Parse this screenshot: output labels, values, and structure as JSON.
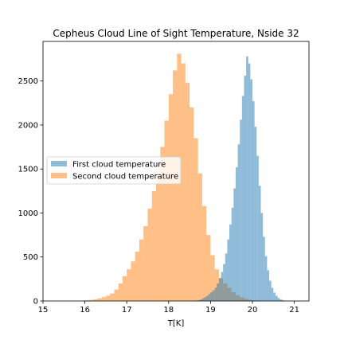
{
  "chart_data": {
    "type": "histogram",
    "title": "Cepheus Cloud Line of Sight Temperature, Nside 32",
    "xlabel": "T[K]",
    "ylabel": "",
    "xlim": [
      15.0,
      21.35
    ],
    "ylim": [
      0,
      2950
    ],
    "xticks": [
      "15",
      "16",
      "17",
      "18",
      "19",
      "20",
      "21"
    ],
    "yticks": [
      "0",
      "500",
      "1000",
      "1500",
      "2000",
      "2500"
    ],
    "grid": false,
    "legend_position": "center-left",
    "series": [
      {
        "name": "First cloud temperature",
        "color": "#1f77b4",
        "opacity": 0.5,
        "bin_width": 0.05,
        "bins": [
          [
            18.6,
            2
          ],
          [
            18.65,
            5
          ],
          [
            18.7,
            10
          ],
          [
            18.75,
            18
          ],
          [
            18.8,
            30
          ],
          [
            18.85,
            45
          ],
          [
            18.9,
            60
          ],
          [
            18.95,
            80
          ],
          [
            19.0,
            100
          ],
          [
            19.05,
            120
          ],
          [
            19.1,
            150
          ],
          [
            19.15,
            200
          ],
          [
            19.2,
            260
          ],
          [
            19.25,
            330
          ],
          [
            19.3,
            420
          ],
          [
            19.35,
            540
          ],
          [
            19.4,
            700
          ],
          [
            19.45,
            870
          ],
          [
            19.5,
            1060
          ],
          [
            19.55,
            1280
          ],
          [
            19.6,
            1520
          ],
          [
            19.65,
            1780
          ],
          [
            19.7,
            2060
          ],
          [
            19.75,
            2330
          ],
          [
            19.8,
            2560
          ],
          [
            19.85,
            2780
          ],
          [
            19.9,
            2700
          ],
          [
            19.95,
            2520
          ],
          [
            20.0,
            2270
          ],
          [
            20.05,
            1980
          ],
          [
            20.1,
            1650
          ],
          [
            20.15,
            1310
          ],
          [
            20.2,
            1000
          ],
          [
            20.25,
            730
          ],
          [
            20.3,
            510
          ],
          [
            20.35,
            350
          ],
          [
            20.4,
            230
          ],
          [
            20.45,
            150
          ],
          [
            20.5,
            95
          ],
          [
            20.55,
            60
          ],
          [
            20.6,
            35
          ],
          [
            20.65,
            20
          ],
          [
            20.7,
            10
          ],
          [
            20.75,
            5
          ],
          [
            20.8,
            2
          ]
        ]
      },
      {
        "name": "Second cloud temperature",
        "color": "#ff7f0e",
        "opacity": 0.5,
        "bin_width": 0.1,
        "bins": [
          [
            15.8,
            2
          ],
          [
            15.9,
            5
          ],
          [
            16.0,
            8
          ],
          [
            16.1,
            12
          ],
          [
            16.2,
            20
          ],
          [
            16.3,
            30
          ],
          [
            16.4,
            45
          ],
          [
            16.5,
            60
          ],
          [
            16.6,
            85
          ],
          [
            16.7,
            130
          ],
          [
            16.8,
            200
          ],
          [
            16.9,
            280
          ],
          [
            17.0,
            360
          ],
          [
            17.1,
            450
          ],
          [
            17.2,
            560
          ],
          [
            17.3,
            700
          ],
          [
            17.4,
            850
          ],
          [
            17.5,
            1050
          ],
          [
            17.6,
            1250
          ],
          [
            17.7,
            1480
          ],
          [
            17.8,
            1750
          ],
          [
            17.9,
            2050
          ],
          [
            18.0,
            2350
          ],
          [
            18.1,
            2620
          ],
          [
            18.2,
            2810
          ],
          [
            18.3,
            2700
          ],
          [
            18.4,
            2480
          ],
          [
            18.5,
            2200
          ],
          [
            18.6,
            1850
          ],
          [
            18.7,
            1450
          ],
          [
            18.8,
            1080
          ],
          [
            18.9,
            750
          ],
          [
            19.0,
            520
          ],
          [
            19.1,
            360
          ],
          [
            19.2,
            260
          ],
          [
            19.3,
            200
          ],
          [
            19.4,
            150
          ],
          [
            19.5,
            100
          ],
          [
            19.6,
            65
          ],
          [
            19.7,
            40
          ],
          [
            19.8,
            22
          ],
          [
            19.9,
            12
          ],
          [
            20.0,
            6
          ],
          [
            20.1,
            2
          ]
        ]
      }
    ]
  }
}
